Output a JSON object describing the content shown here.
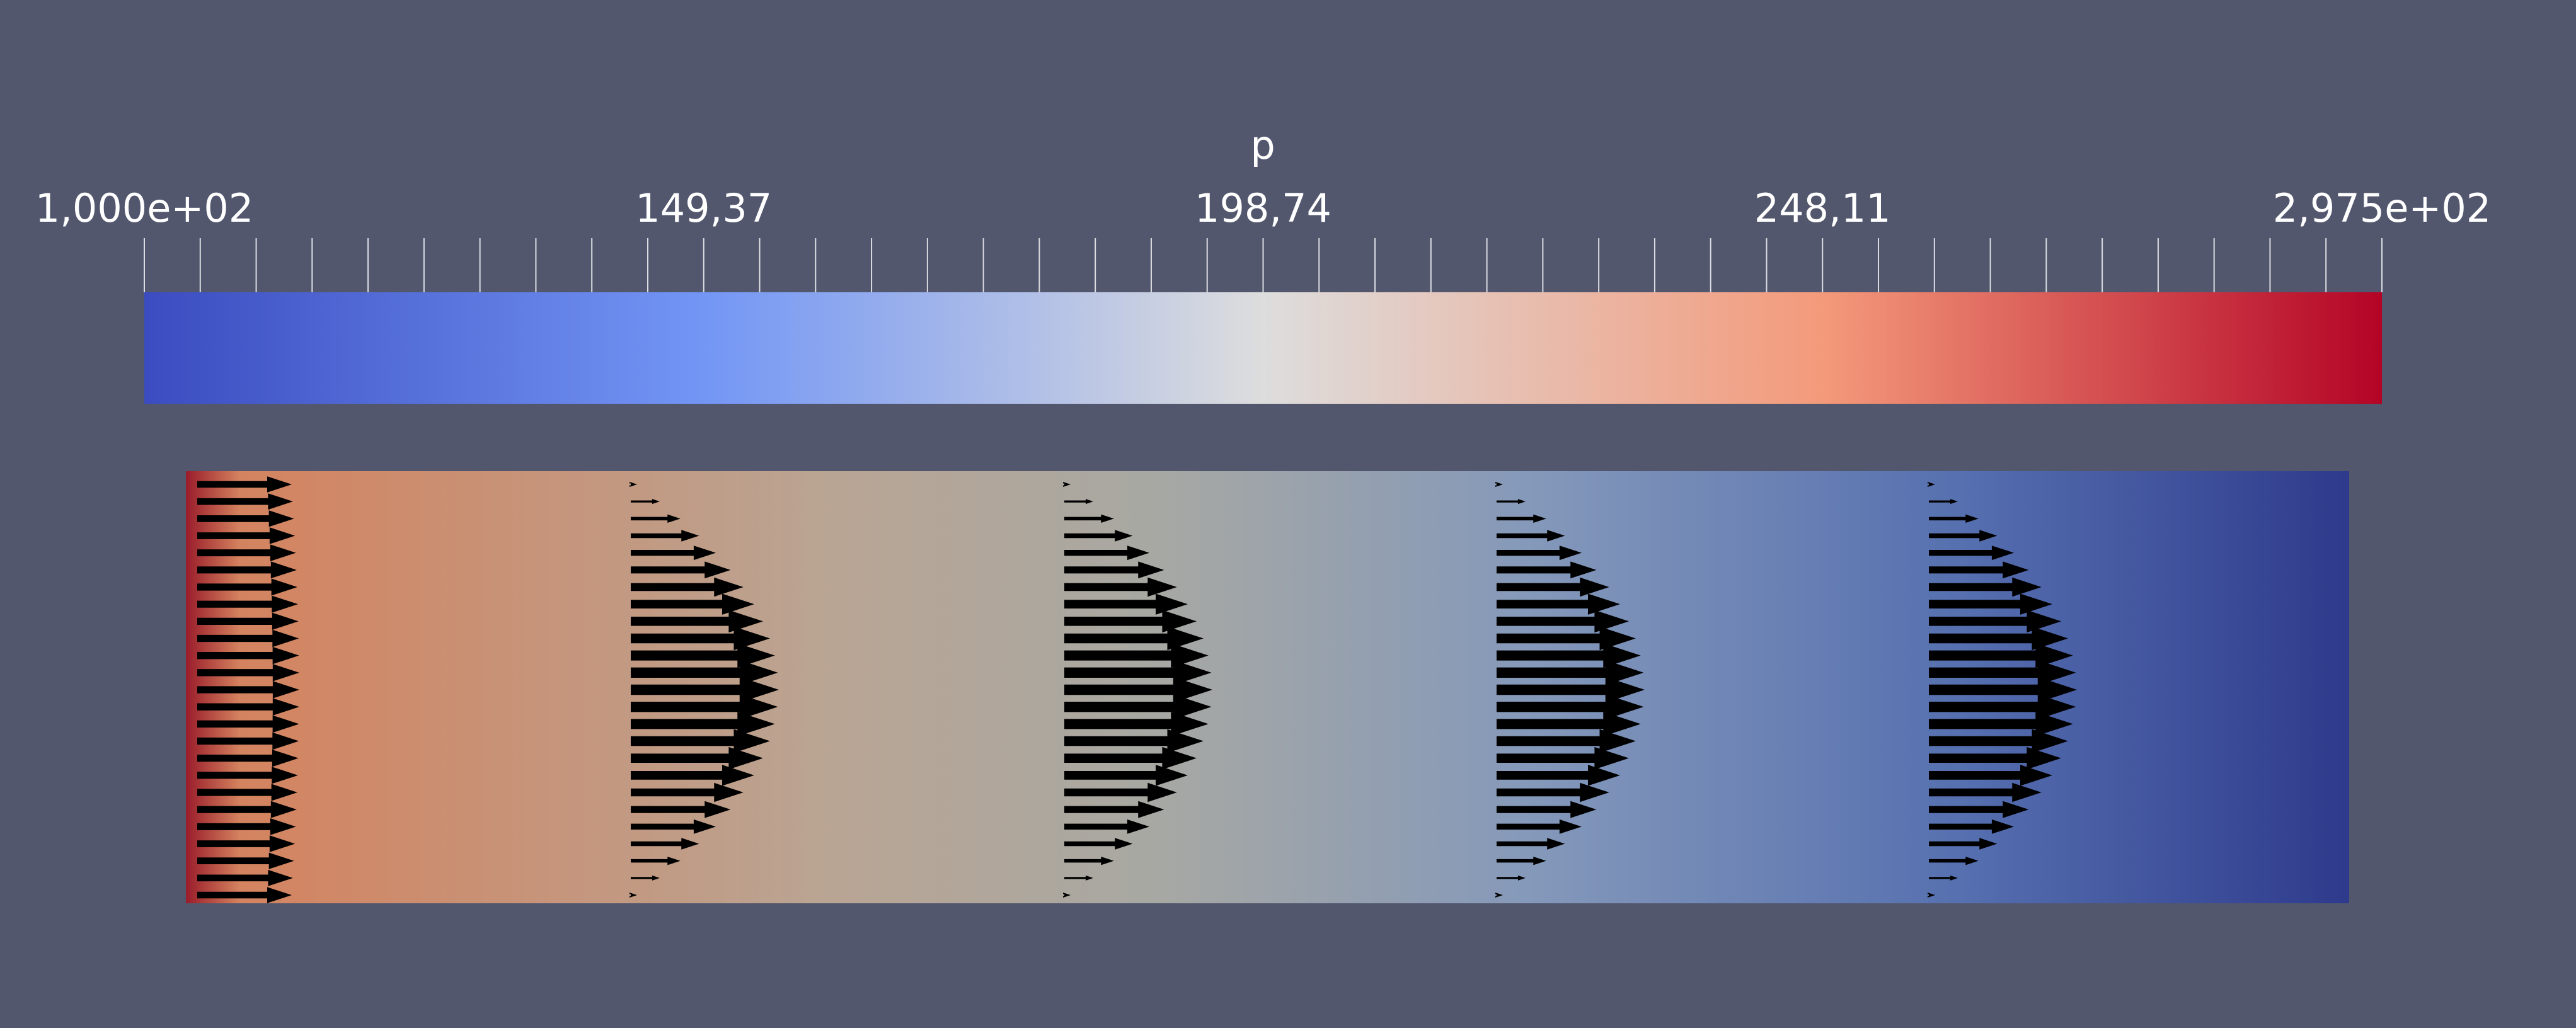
{
  "color_legend": {
    "title": "p",
    "labels": [
      "1,000e+02",
      "149,37",
      "198,74",
      "248,11",
      "2,975e+02"
    ]
  }
}
